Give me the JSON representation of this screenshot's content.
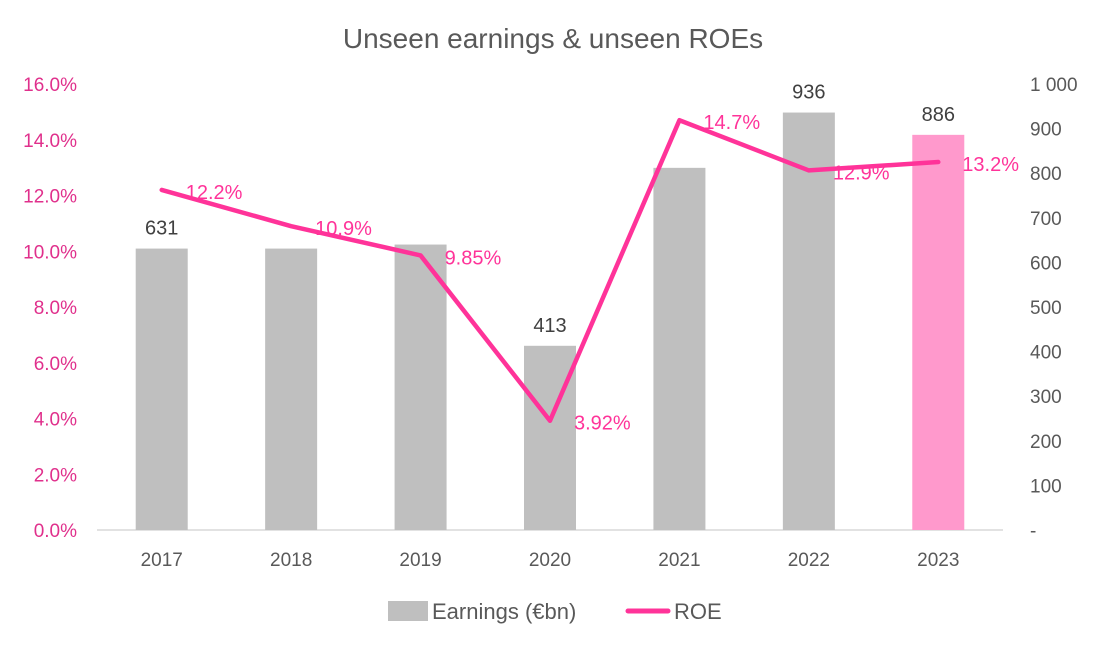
{
  "chart_data": {
    "type": "bar",
    "title": "Unseen earnings & unseen ROEs",
    "categories": [
      "2017",
      "2018",
      "2019",
      "2020",
      "2021",
      "2022",
      "2023"
    ],
    "series": [
      {
        "name": "Earnings (€bn)",
        "type": "bar",
        "axis": "right",
        "values": [
          631,
          631,
          640,
          413,
          812,
          936,
          886
        ],
        "data_labels": [
          "631",
          "",
          "",
          "413",
          "",
          "936",
          "886"
        ],
        "color": "#bfbfbf",
        "highlight_color": "#ff99cc",
        "highlight_index": 6
      },
      {
        "name": "ROE",
        "type": "line",
        "axis": "left",
        "values": [
          12.2,
          10.9,
          9.85,
          3.92,
          14.7,
          12.9,
          13.2
        ],
        "data_labels": [
          "12.2%",
          "10.9%",
          "9.85%",
          "3.92%",
          "14.7%",
          "12.9%",
          "13.2%"
        ],
        "color": "#ff3399"
      }
    ],
    "y_left": {
      "ylim": [
        0,
        16
      ],
      "ticks": [
        0,
        2,
        4,
        6,
        8,
        10,
        12,
        14,
        16
      ],
      "tick_labels": [
        "0.0%",
        "2.0%",
        "4.0%",
        "6.0%",
        "8.0%",
        "10.0%",
        "12.0%",
        "14.0%",
        "16.0%"
      ],
      "color": "#e0308c"
    },
    "y_right": {
      "ylim": [
        0,
        1000
      ],
      "ticks": [
        0,
        100,
        200,
        300,
        400,
        500,
        600,
        700,
        800,
        900,
        1000
      ],
      "tick_labels": [
        "-",
        "100",
        "200",
        "300",
        "400",
        "500",
        "600",
        "700",
        "800",
        "900",
        "1 000"
      ]
    },
    "grid": false,
    "legend": {
      "position": "bottom",
      "items": [
        "Earnings (€bn)",
        "ROE"
      ]
    }
  }
}
